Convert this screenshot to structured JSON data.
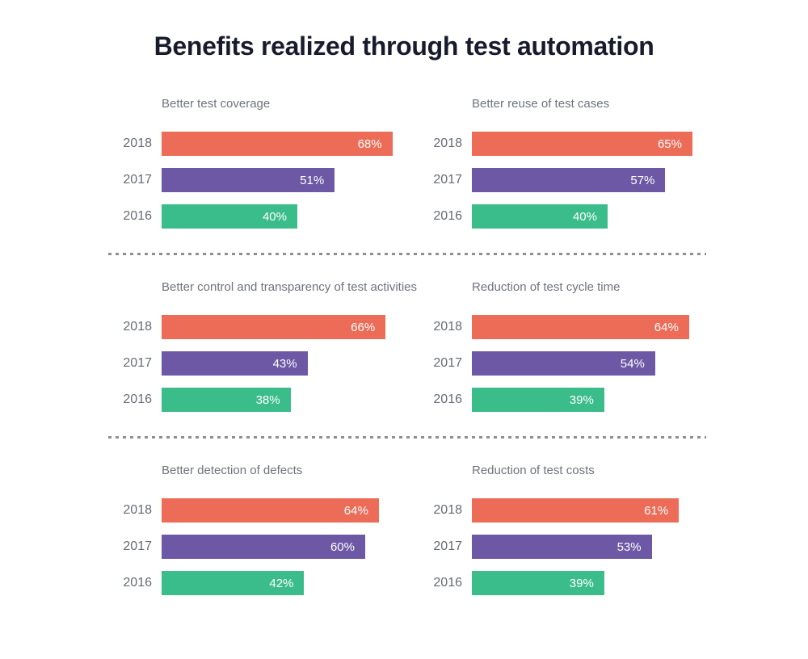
{
  "title": "Benefits realized through test automation",
  "series_colors": [
    "#EC6C58",
    "#6C58A5",
    "#3BBC8B"
  ],
  "chart_data": [
    {
      "type": "bar",
      "orientation": "horizontal",
      "title": "Better test coverage",
      "categories": [
        "2018",
        "2017",
        "2016"
      ],
      "values": [
        68,
        51,
        40
      ],
      "labels": [
        "68%",
        "51%",
        "40%"
      ],
      "xlim": [
        0,
        100
      ],
      "grid": false
    },
    {
      "type": "bar",
      "orientation": "horizontal",
      "title": "Better reuse of test cases",
      "categories": [
        "2018",
        "2017",
        "2016"
      ],
      "values": [
        65,
        57,
        40
      ],
      "labels": [
        "65%",
        "57%",
        "40%"
      ],
      "xlim": [
        0,
        100
      ],
      "grid": false
    },
    {
      "type": "bar",
      "orientation": "horizontal",
      "title": "Better control and transparency of test activities",
      "categories": [
        "2018",
        "2017",
        "2016"
      ],
      "values": [
        66,
        43,
        38
      ],
      "labels": [
        "66%",
        "43%",
        "38%"
      ],
      "xlim": [
        0,
        100
      ],
      "grid": false
    },
    {
      "type": "bar",
      "orientation": "horizontal",
      "title": "Reduction of test cycle time",
      "categories": [
        "2018",
        "2017",
        "2016"
      ],
      "values": [
        64,
        54,
        39
      ],
      "labels": [
        "64%",
        "54%",
        "39%"
      ],
      "xlim": [
        0,
        100
      ],
      "grid": false
    },
    {
      "type": "bar",
      "orientation": "horizontal",
      "title": "Better detection of defects",
      "categories": [
        "2018",
        "2017",
        "2016"
      ],
      "values": [
        64,
        60,
        42
      ],
      "labels": [
        "64%",
        "60%",
        "42%"
      ],
      "xlim": [
        0,
        100
      ],
      "grid": false
    },
    {
      "type": "bar",
      "orientation": "horizontal",
      "title": "Reduction of test costs",
      "categories": [
        "2018",
        "2017",
        "2016"
      ],
      "values": [
        61,
        53,
        39
      ],
      "labels": [
        "61%",
        "53%",
        "39%"
      ],
      "xlim": [
        0,
        100
      ],
      "grid": false
    }
  ]
}
